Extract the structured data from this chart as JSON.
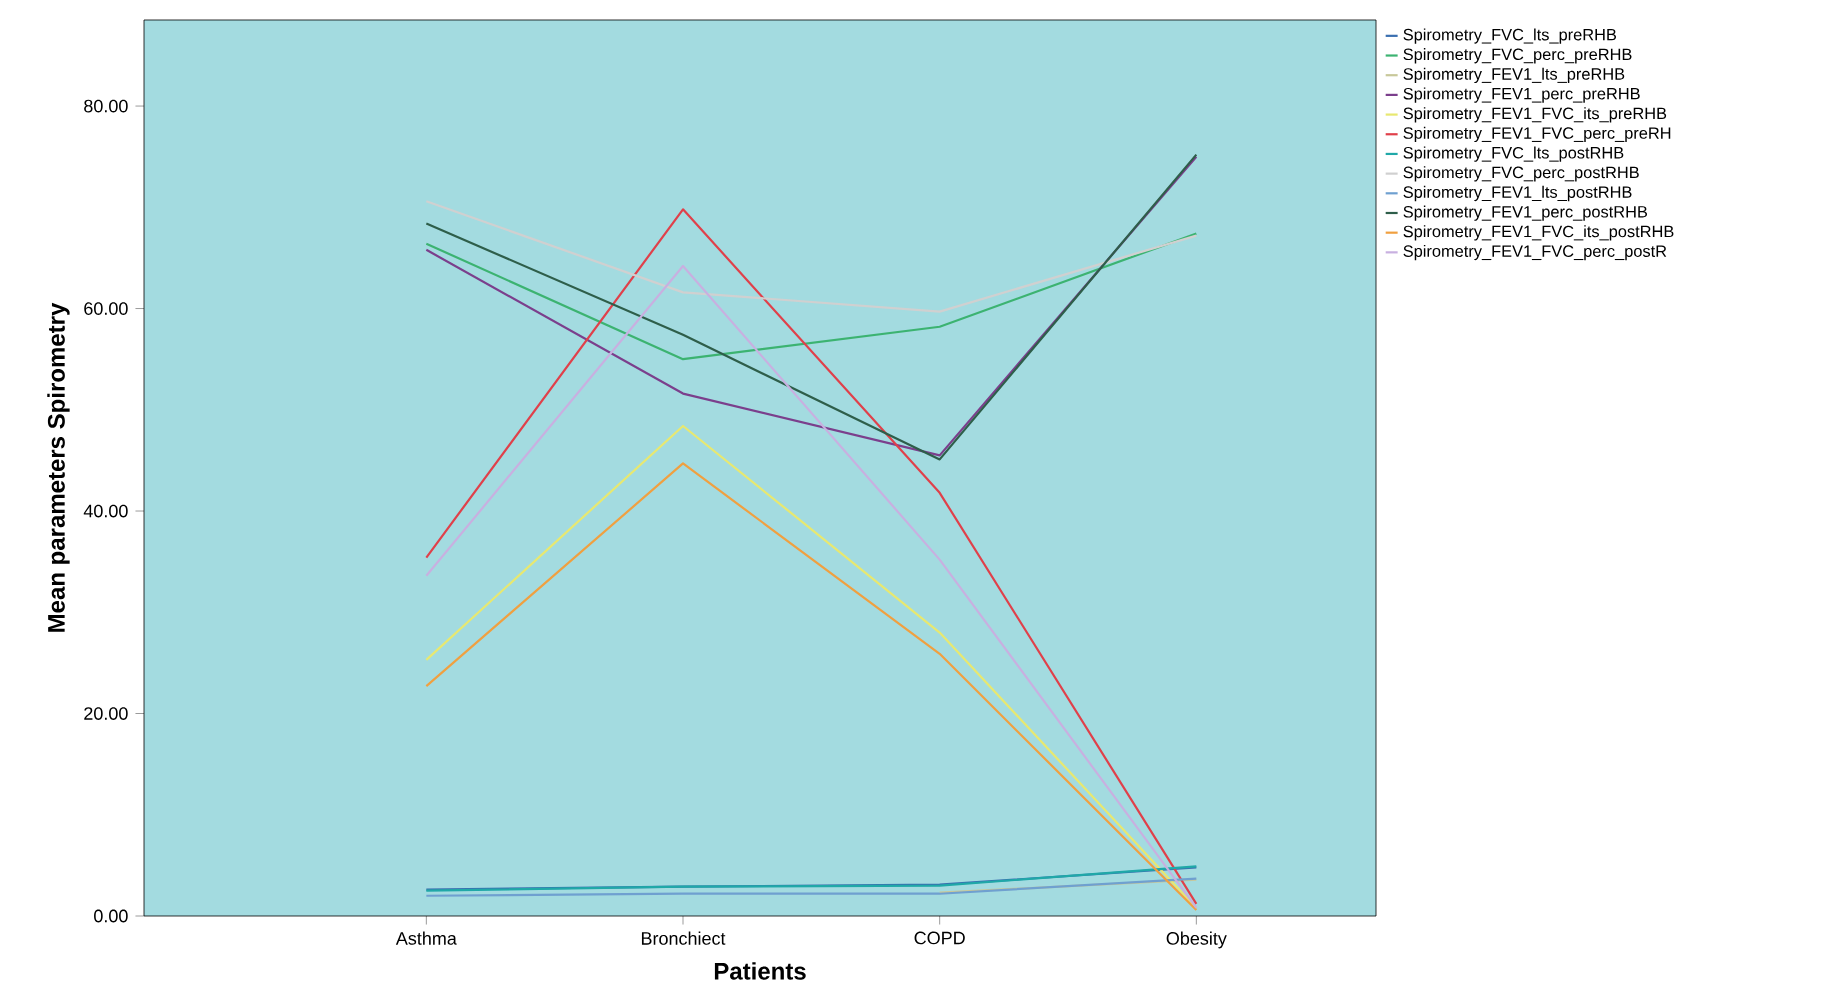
{
  "chart_data": {
    "type": "line",
    "xlabel": "Patients",
    "ylabel": "Mean parameters Spirometry",
    "categories": [
      "Asthma",
      "Bronchiect",
      "COPD",
      "Obesity"
    ],
    "ylim": [
      0,
      88.5
    ],
    "yticks": [
      {
        "value": 0,
        "label": "0.00"
      },
      {
        "value": 20,
        "label": "20.00"
      },
      {
        "value": 40,
        "label": "40.00"
      },
      {
        "value": 60,
        "label": "60.00"
      },
      {
        "value": 80,
        "label": "80.00"
      }
    ],
    "grid": false,
    "legend": "top right",
    "marker": "none",
    "line_style": "solid",
    "series": [
      {
        "name": "Spirometry_FVC_lts_preRHB",
        "color": "#3a6fb0",
        "values": [
          2.6,
          2.9,
          3.1,
          4.8
        ]
      },
      {
        "name": "Spirometry_FVC_perc_preRHB",
        "color": "#3cb371",
        "values": [
          66.4,
          55.0,
          58.2,
          67.4
        ]
      },
      {
        "name": "Spirometry_FEV1_lts_preRHB",
        "color": "#c8c89a",
        "values": [
          null,
          null,
          2.3,
          3.6
        ]
      },
      {
        "name": "Spirometry_FEV1_perc_preRHB",
        "color": "#7b3f8c",
        "values": [
          65.8,
          51.6,
          45.5,
          75.0
        ]
      },
      {
        "name": "Spirometry_FEV1_FVC_its_preRHB",
        "color": "#e8e870",
        "values": [
          25.3,
          48.4,
          28.0,
          0.8
        ]
      },
      {
        "name": "Spirometry_FEV1_FVC_perc_preRH",
        "color": "#e0404a",
        "values": [
          35.4,
          69.8,
          41.8,
          1.2
        ]
      },
      {
        "name": "Spirometry_FVC_lts_postRHB",
        "color": "#20a8a8",
        "values": [
          2.5,
          2.9,
          3.0,
          4.9
        ]
      },
      {
        "name": "Spirometry_FVC_perc_postRHB",
        "color": "#d0d0d0",
        "values": [
          70.6,
          61.6,
          59.7,
          67.2
        ]
      },
      {
        "name": "Spirometry_FEV1_lts_postRHB",
        "color": "#6fa0d0",
        "values": [
          2.0,
          2.2,
          2.2,
          3.7
        ]
      },
      {
        "name": "Spirometry_FEV1_perc_postRHB",
        "color": "#2e5e4a",
        "values": [
          68.4,
          57.4,
          45.1,
          75.2
        ]
      },
      {
        "name": "Spirometry_FEV1_FVC_its_postRHB",
        "color": "#f0a040",
        "values": [
          22.7,
          44.7,
          25.9,
          0.6
        ]
      },
      {
        "name": "Spirometry_FEV1_FVC_perc_postR",
        "color": "#c8b0e0",
        "values": [
          33.6,
          64.2,
          35.2,
          0.8
        ]
      }
    ]
  }
}
